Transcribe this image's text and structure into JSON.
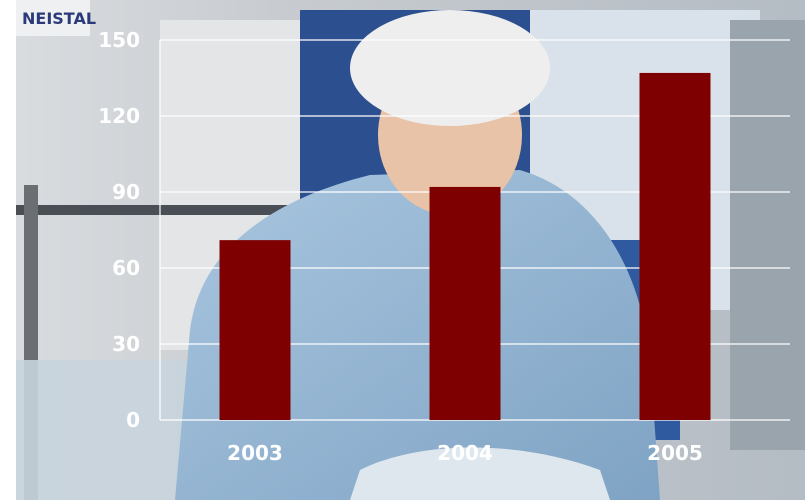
{
  "chart_data": {
    "type": "bar",
    "categories": [
      "2003",
      "2004",
      "2005"
    ],
    "values": [
      71,
      92,
      137
    ],
    "ylim": [
      0,
      150
    ],
    "yticks": [
      0,
      30,
      60,
      90,
      120,
      150
    ],
    "title": "",
    "xlabel": "",
    "ylabel": "",
    "grid": true,
    "bar_color": "#7f0000",
    "grid_color": "#ffffff",
    "label_color": "#ffffff"
  },
  "background": {
    "photo_sign_text": "NEISTAL"
  }
}
